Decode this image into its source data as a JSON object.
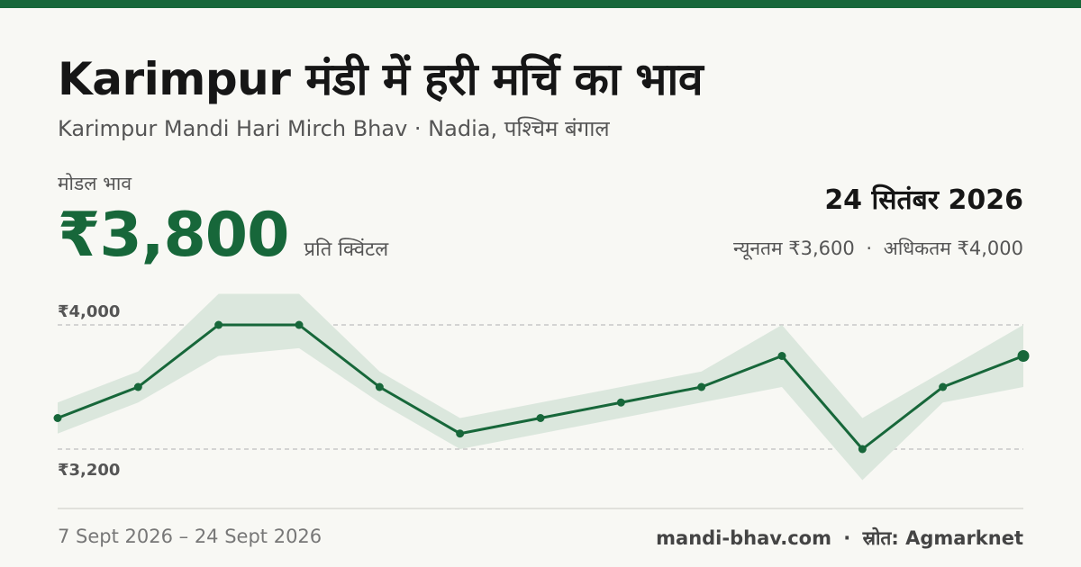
{
  "header": {
    "title": "Karimpur मंडी में हरी मर्चि का भाव",
    "subtitle": "Karimpur Mandi Hari Mirch Bhav · Nadia, पश्चिम बंगाल"
  },
  "price": {
    "label": "मोडल भाव",
    "value": "₹3,800",
    "unit": "प्रति क्विंटल"
  },
  "date": "24 सितंबर 2026",
  "range": {
    "min_text": "न्यूनतम ₹3,600",
    "separator": "·",
    "max_text": "अधिकतम ₹4,000"
  },
  "footer": {
    "date_range": "7 Sept 2026 – 24 Sept 2026",
    "site": "mandi-bhav.com",
    "separator": "·",
    "source": "स्रोत: Agmarknet"
  },
  "colors": {
    "accent": "#17673a",
    "band": "#dbe7dd",
    "gridline": "#bfbfbf"
  },
  "chart_data": {
    "type": "line",
    "y_tick_labels": [
      "₹4,000",
      "₹3,200"
    ],
    "y_ticks": [
      4000,
      3200
    ],
    "ylim": [
      3200,
      4000
    ],
    "grid": true,
    "series": [
      {
        "values": [
          3400,
          3600,
          4000,
          4000,
          3600,
          3300,
          3400,
          3500,
          3600,
          3800,
          3200,
          3600,
          3800
        ],
        "min": [
          3300,
          3500,
          3800,
          3850,
          3500,
          3200,
          3300,
          3400,
          3500,
          3600,
          3000,
          3500,
          3600
        ],
        "max": [
          3500,
          3700,
          4200,
          4200,
          3700,
          3400,
          3500,
          3600,
          3700,
          4000,
          3400,
          3700,
          4000
        ]
      }
    ]
  }
}
